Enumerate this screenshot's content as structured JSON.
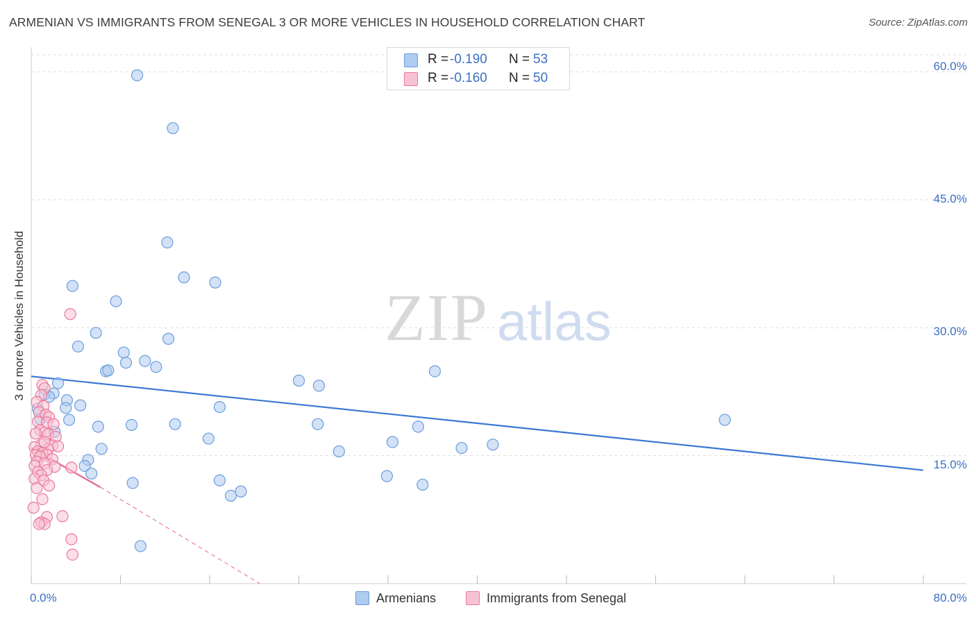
{
  "title": "ARMENIAN VS IMMIGRANTS FROM SENEGAL 3 OR MORE VEHICLES IN HOUSEHOLD CORRELATION CHART",
  "source": "Source: ZipAtlas.com",
  "watermark": {
    "part1": "ZIP",
    "part2": "atlas"
  },
  "legend": [
    {
      "name": "Armenians",
      "r_label": "R =",
      "r_value": "-0.190",
      "n_label": "N =",
      "n_value": "53",
      "fill": "#aecbf0",
      "stroke": "#6b9ddb"
    },
    {
      "name": "Immigrants from Senegal",
      "r_label": "R =",
      "r_value": "-0.160",
      "n_label": "N =",
      "n_value": "50",
      "fill": "#f7c3d4",
      "stroke": "#e8799c"
    }
  ],
  "colors": {
    "blue_line": "#3a78d4",
    "pink_line": "#e8638e",
    "axis_text": "#3a6fc4",
    "grid": "#dddddd"
  },
  "chart_data": {
    "type": "scatter",
    "title": "ARMENIAN VS IMMIGRANTS FROM SENEGAL 3 OR MORE VEHICLES IN HOUSEHOLD CORRELATION CHART",
    "xlabel": "",
    "ylabel": "3 or more Vehicles in Household",
    "xlim": [
      0,
      80
    ],
    "ylim": [
      0,
      62
    ],
    "x_tick_labels": [
      "0.0%",
      "80.0%"
    ],
    "y_ticks": [
      15,
      30,
      45,
      60
    ],
    "y_tick_labels": [
      "15.0%",
      "30.0%",
      "45.0%",
      "60.0%"
    ],
    "grid": true,
    "series": [
      {
        "name": "Armenians",
        "color": "#6b9ddb",
        "points": [
          [
            9.5,
            59.6
          ],
          [
            12.7,
            53.4
          ],
          [
            12.2,
            40.0
          ],
          [
            13.7,
            35.9
          ],
          [
            16.5,
            35.3
          ],
          [
            3.7,
            34.9
          ],
          [
            7.6,
            33.1
          ],
          [
            5.8,
            29.4
          ],
          [
            12.3,
            28.7
          ],
          [
            4.2,
            27.8
          ],
          [
            8.3,
            27.1
          ],
          [
            8.5,
            25.9
          ],
          [
            10.2,
            26.1
          ],
          [
            11.2,
            25.4
          ],
          [
            6.7,
            24.9
          ],
          [
            6.9,
            25.0
          ],
          [
            24.0,
            23.8
          ],
          [
            25.8,
            23.2
          ],
          [
            36.2,
            24.9
          ],
          [
            2.4,
            23.5
          ],
          [
            1.2,
            22.2
          ],
          [
            2.0,
            22.3
          ],
          [
            1.6,
            21.9
          ],
          [
            3.2,
            21.5
          ],
          [
            4.4,
            20.9
          ],
          [
            0.6,
            20.5
          ],
          [
            3.1,
            20.6
          ],
          [
            16.9,
            20.7
          ],
          [
            0.8,
            19.3
          ],
          [
            3.4,
            19.2
          ],
          [
            62.2,
            19.2
          ],
          [
            6.0,
            18.4
          ],
          [
            9.0,
            18.6
          ],
          [
            12.9,
            18.7
          ],
          [
            25.7,
            18.7
          ],
          [
            34.7,
            18.4
          ],
          [
            2.1,
            17.8
          ],
          [
            15.9,
            17.0
          ],
          [
            32.4,
            16.6
          ],
          [
            6.3,
            15.8
          ],
          [
            27.6,
            15.5
          ],
          [
            38.6,
            15.9
          ],
          [
            41.4,
            16.3
          ],
          [
            5.1,
            14.5
          ],
          [
            4.8,
            13.8
          ],
          [
            5.4,
            12.9
          ],
          [
            31.9,
            12.6
          ],
          [
            9.1,
            11.8
          ],
          [
            16.9,
            12.1
          ],
          [
            35.1,
            11.6
          ],
          [
            18.8,
            10.8
          ],
          [
            17.9,
            10.3
          ],
          [
            9.8,
            4.4
          ]
        ]
      },
      {
        "name": "Immigrants from Senegal",
        "color": "#e8799c",
        "points": [
          [
            3.5,
            31.6
          ],
          [
            1.0,
            23.3
          ],
          [
            1.2,
            22.9
          ],
          [
            0.9,
            22.1
          ],
          [
            0.5,
            21.3
          ],
          [
            1.1,
            20.8
          ],
          [
            0.7,
            20.1
          ],
          [
            1.3,
            19.8
          ],
          [
            1.6,
            19.5
          ],
          [
            0.6,
            19.0
          ],
          [
            1.4,
            18.9
          ],
          [
            2.0,
            18.7
          ],
          [
            0.8,
            18.0
          ],
          [
            1.2,
            17.7
          ],
          [
            0.4,
            17.6
          ],
          [
            1.5,
            17.5
          ],
          [
            2.2,
            17.2
          ],
          [
            0.9,
            16.3
          ],
          [
            1.9,
            16.2
          ],
          [
            2.4,
            16.1
          ],
          [
            0.3,
            16.0
          ],
          [
            1.5,
            15.8
          ],
          [
            0.6,
            15.5
          ],
          [
            1.0,
            15.3
          ],
          [
            0.4,
            15.1
          ],
          [
            1.4,
            15.1
          ],
          [
            0.8,
            14.9
          ],
          [
            1.9,
            14.6
          ],
          [
            0.5,
            14.3
          ],
          [
            1.2,
            14.1
          ],
          [
            0.3,
            13.8
          ],
          [
            2.1,
            13.7
          ],
          [
            3.6,
            13.6
          ],
          [
            1.4,
            13.3
          ],
          [
            0.6,
            13.1
          ],
          [
            0.9,
            12.7
          ],
          [
            0.3,
            12.3
          ],
          [
            1.1,
            12.1
          ],
          [
            1.6,
            11.5
          ],
          [
            0.5,
            11.2
          ],
          [
            1.0,
            9.9
          ],
          [
            0.2,
            8.9
          ],
          [
            1.4,
            7.8
          ],
          [
            2.8,
            7.9
          ],
          [
            0.9,
            7.2
          ],
          [
            1.2,
            7.0
          ],
          [
            0.7,
            7.0
          ],
          [
            3.6,
            5.2
          ],
          [
            3.7,
            3.4
          ],
          [
            1.2,
            16.6
          ]
        ]
      }
    ],
    "trendlines": [
      {
        "series": "Armenians",
        "x": [
          0,
          80
        ],
        "y": [
          24.3,
          13.3
        ],
        "style": "solid"
      },
      {
        "series": "Immigrants from Senegal",
        "x": [
          0,
          6.2
        ],
        "y": [
          15.9,
          11.3
        ],
        "style": "solid"
      },
      {
        "series": "Immigrants from Senegal",
        "x": [
          6.2,
          20.5
        ],
        "y": [
          11.3,
          0.0
        ],
        "style": "dashed"
      }
    ]
  }
}
